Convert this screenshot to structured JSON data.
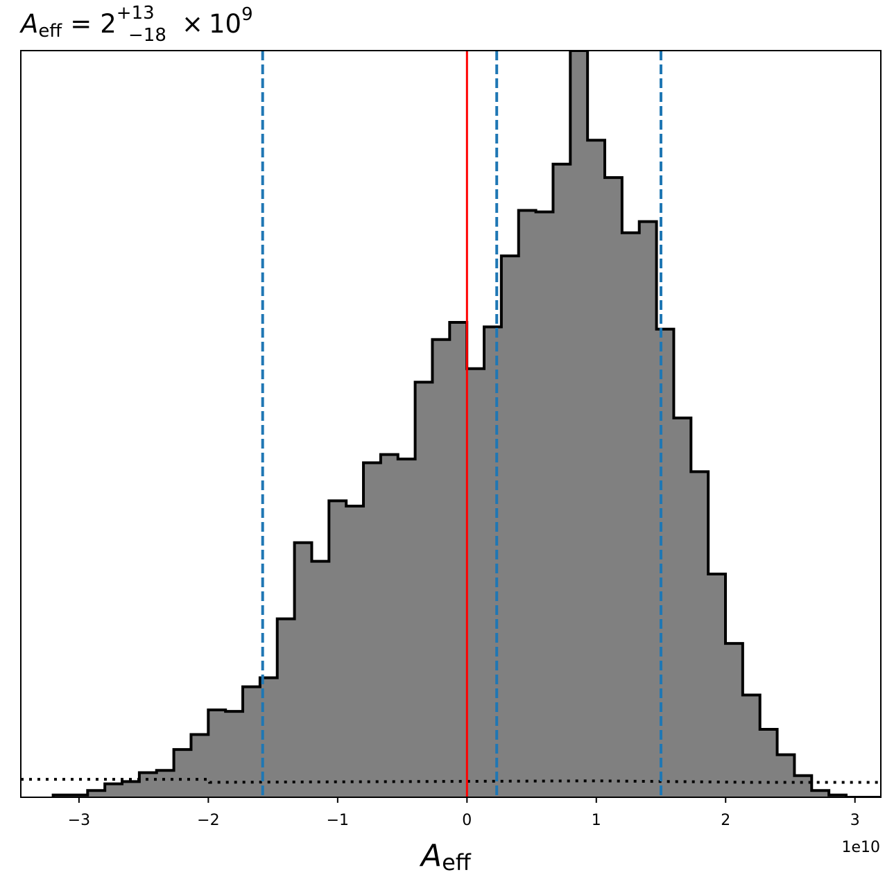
{
  "chart_data": {
    "type": "bar",
    "title": {
      "symbol": "A",
      "symbol_sub": "eff",
      "equals": "=",
      "value": "2",
      "upper": "+13",
      "lower": "−18",
      "times": "×",
      "base": "10",
      "exp": "9"
    },
    "xlabel": {
      "symbol": "A",
      "sub": "eff"
    },
    "x_offset_label": "1e10",
    "xlim": [
      -3.45,
      3.2
    ],
    "ylim": [
      0,
      100
    ],
    "xticks": [
      {
        "value": -3,
        "label": "−3"
      },
      {
        "value": -2,
        "label": "−2"
      },
      {
        "value": -1,
        "label": "−1"
      },
      {
        "value": 0,
        "label": "0"
      },
      {
        "value": 1,
        "label": "1"
      },
      {
        "value": 2,
        "label": "2"
      },
      {
        "value": 3,
        "label": "3"
      }
    ],
    "histogram": {
      "bin_start": -3.2,
      "bin_width": 0.1333,
      "fill_color": "#808080",
      "edge_color": "#000000",
      "counts": [
        0.3,
        0.3,
        0.9,
        1.8,
        2.1,
        3.3,
        3.6,
        6.4,
        8.4,
        11.7,
        11.5,
        14.8,
        16.0,
        23.9,
        34.1,
        31.6,
        39.7,
        39.0,
        44.8,
        45.9,
        45.3,
        55.6,
        61.3,
        63.6,
        57.4,
        63.0,
        72.5,
        78.6,
        78.4,
        84.8,
        100,
        88.0,
        83.0,
        75.6,
        77.1,
        62.7,
        50.8,
        43.6,
        29.9,
        20.6,
        13.7,
        9.1,
        5.7,
        2.9,
        0.9,
        0.3,
        0.0,
        0.0,
        0.0,
        0.2,
        0.0
      ]
    },
    "prior_line": {
      "style": "dotted",
      "color": "#000000",
      "points": [
        [
          -3.45,
          2.4
        ],
        [
          -1.99,
          2.4
        ],
        [
          -1.99,
          2.0
        ],
        [
          1.0,
          2.2
        ],
        [
          2.2,
          2.0
        ],
        [
          3.2,
          2.0
        ]
      ]
    },
    "truth_line": {
      "value": 0.0,
      "color": "#ff0000"
    },
    "quantile_lines": {
      "values": [
        -1.58,
        0.23,
        1.5
      ],
      "color": "#1f77b4",
      "style": "dashed"
    }
  }
}
